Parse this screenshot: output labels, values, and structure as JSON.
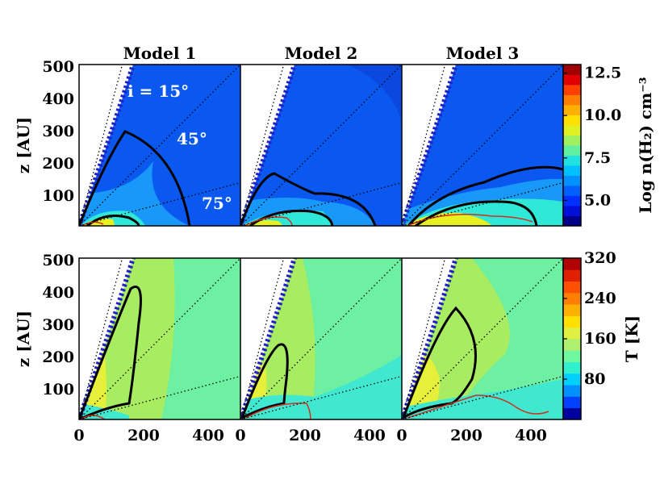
{
  "chart_data": [
    {
      "type": "heatmap",
      "panel_group": "density",
      "ylabel": "z [AU]",
      "xlim": [
        0,
        500
      ],
      "ylim": [
        0,
        500
      ],
      "y_ticks": [
        "100",
        "200",
        "300",
        "400",
        "500"
      ],
      "colorbar": {
        "label": "Log n(H₂) cm⁻³",
        "range": [
          3.5,
          13.0
        ],
        "ticks": [
          "5.0",
          "7.5",
          "10.0",
          "12.5"
        ],
        "tick_values": [
          5.0,
          7.5,
          10.0,
          12.5
        ],
        "colors": [
          "#00008b",
          "#0010d8",
          "#0030ff",
          "#0060ff",
          "#0090ff",
          "#00c0ff",
          "#20e0e0",
          "#60f0a0",
          "#a0f060",
          "#e0f020",
          "#ffe000",
          "#ffb000",
          "#ff8000",
          "#ff4000",
          "#e00000",
          "#a00000"
        ]
      },
      "annotations": [
        {
          "text": "i = 15°",
          "angle_from_z_deg": 15
        },
        {
          "text": "45°",
          "angle_from_z_deg": 45
        },
        {
          "text": "75°",
          "angle_from_z_deg": 75
        }
      ],
      "panels": [
        {
          "title": "Model 1",
          "base_color": "#0a58f0",
          "outflow_cavity": true
        },
        {
          "title": "Model 2",
          "base_color": "#0a58f0",
          "outflow_cavity": true
        },
        {
          "title": "Model 3",
          "base_color": "#0a58f0",
          "outflow_cavity": true
        }
      ]
    },
    {
      "type": "heatmap",
      "panel_group": "temperature",
      "xlabel": "",
      "ylabel": "z [AU]",
      "xlim": [
        0,
        500
      ],
      "ylim": [
        0,
        500
      ],
      "x_ticks": [
        "0",
        "200",
        "400"
      ],
      "y_ticks": [
        "100",
        "200",
        "300",
        "400",
        "500"
      ],
      "colorbar": {
        "label": "T [K]",
        "range": [
          0,
          320
        ],
        "ticks": [
          "80",
          "160",
          "240",
          "320"
        ],
        "tick_values": [
          80,
          160,
          240,
          320
        ],
        "colors": [
          "#0000a0",
          "#0040ff",
          "#0090ff",
          "#00d0ff",
          "#30f0d0",
          "#70f8a0",
          "#b0f070",
          "#e0f040",
          "#ffe000",
          "#ffb000",
          "#ff8000",
          "#ff5000",
          "#e02000",
          "#b00000"
        ]
      },
      "panels": [
        {
          "title": "Model 1",
          "base_color": "#6ef0a2"
        },
        {
          "title": "Model 2",
          "base_color": "#6ef0a2"
        },
        {
          "title": "Model 3",
          "base_color": "#6ef0a2"
        }
      ]
    }
  ]
}
